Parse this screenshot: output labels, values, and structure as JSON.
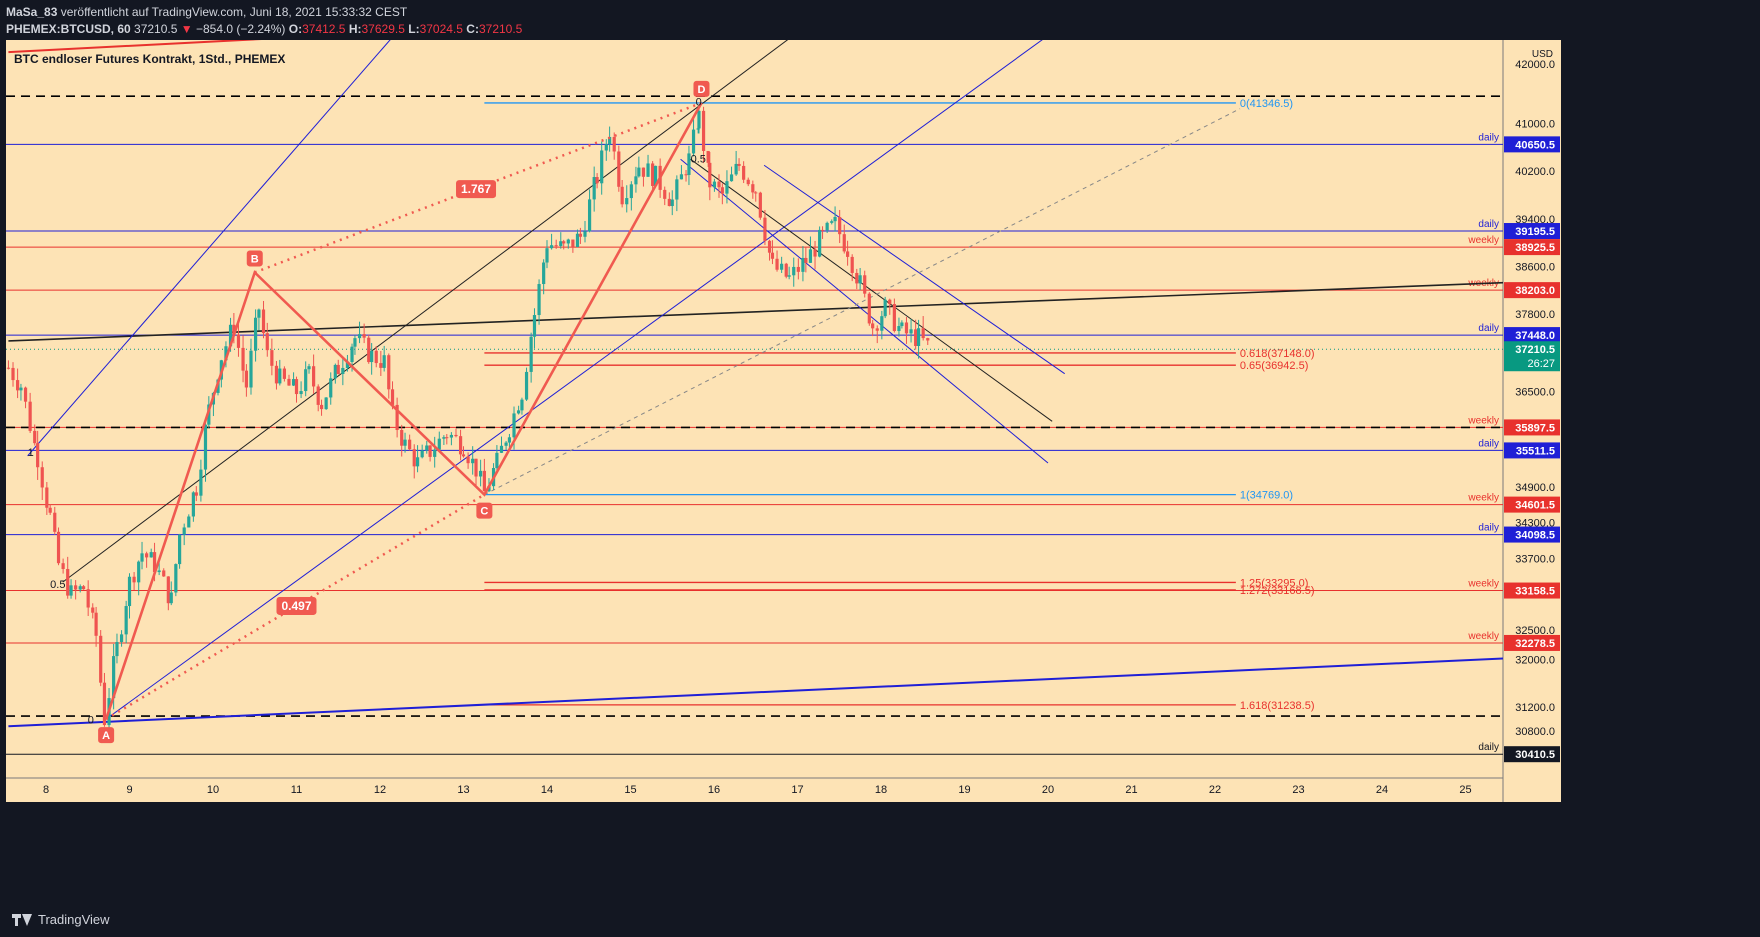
{
  "header": {
    "author": "MaSa_83",
    "published": "veröffentlicht auf TradingView.com, Juni 18, 2021 15:33:32 CEST",
    "symbol": "PHEMEX:BTCUSD, 60",
    "last": "37210.5",
    "change": "−854.0 (−2.24%)",
    "o_label": "O:",
    "o_value": "37412.5",
    "h_label": "H:",
    "h_value": "37629.5",
    "l_label": "L:",
    "l_value": "37024.5",
    "c_label": "C:",
    "c_value": "37210.5"
  },
  "footer": {
    "brand": "TradingView"
  },
  "colors": {
    "chart_bg": "#fde3b5",
    "up": "#26a69a",
    "down": "#ef5350",
    "pattern": "#f05a50",
    "trend_blue": "#1f1fd6",
    "fib_blue": "#2196f3",
    "red_line": "#e8312d",
    "price_green": "#089981"
  },
  "chart_data": {
    "type": "candlestick",
    "title": "BTC endloser Futures Kontrakt, 1Std., PHEMEX",
    "currency": "USD",
    "ylim": [
      30200,
      42500
    ],
    "xlim": [
      7.55,
      25.5
    ],
    "x_ticks": [
      8,
      9,
      10,
      11,
      12,
      13,
      14,
      15,
      16,
      17,
      18,
      19,
      20,
      21,
      22,
      23,
      24,
      25
    ],
    "y_ticks": [
      "42000.0",
      "41000.0",
      "40200.0",
      "39400.0",
      "38600.0",
      "37800.0",
      "36500.0",
      "34900.0",
      "34300.0",
      "33700.0",
      "32500.0",
      "32000.0",
      "31200.0",
      "30800.0"
    ],
    "price_path": [
      [
        7.55,
        36900
      ],
      [
        7.7,
        36600
      ],
      [
        7.9,
        35400
      ],
      [
        8.05,
        34400
      ],
      [
        8.15,
        33600
      ],
      [
        8.3,
        33100
      ],
      [
        8.45,
        33200
      ],
      [
        8.6,
        32400
      ],
      [
        8.7,
        31000
      ],
      [
        8.85,
        32200
      ],
      [
        9.0,
        33300
      ],
      [
        9.15,
        33800
      ],
      [
        9.3,
        33600
      ],
      [
        9.5,
        33000
      ],
      [
        9.6,
        34100
      ],
      [
        9.8,
        34900
      ],
      [
        9.95,
        36200
      ],
      [
        10.1,
        37100
      ],
      [
        10.25,
        37600
      ],
      [
        10.4,
        36600
      ],
      [
        10.55,
        37900
      ],
      [
        10.65,
        37100
      ],
      [
        10.8,
        36700
      ],
      [
        11.0,
        36500
      ],
      [
        11.15,
        36800
      ],
      [
        11.3,
        36300
      ],
      [
        11.5,
        36900
      ],
      [
        11.7,
        37400
      ],
      [
        11.9,
        37100
      ],
      [
        12.05,
        37000
      ],
      [
        12.15,
        36100
      ],
      [
        12.3,
        35600
      ],
      [
        12.45,
        35300
      ],
      [
        12.6,
        35500
      ],
      [
        12.8,
        35800
      ],
      [
        13.0,
        35600
      ],
      [
        13.15,
        35200
      ],
      [
        13.25,
        34800
      ],
      [
        13.4,
        35300
      ],
      [
        13.55,
        35900
      ],
      [
        13.7,
        36500
      ],
      [
        13.85,
        37800
      ],
      [
        14.0,
        39000
      ],
      [
        14.2,
        38900
      ],
      [
        14.4,
        39100
      ],
      [
        14.6,
        40100
      ],
      [
        14.75,
        40900
      ],
      [
        14.9,
        39800
      ],
      [
        15.1,
        40300
      ],
      [
        15.3,
        40100
      ],
      [
        15.5,
        39700
      ],
      [
        15.7,
        40400
      ],
      [
        15.82,
        41100
      ],
      [
        15.95,
        40000
      ],
      [
        16.1,
        39800
      ],
      [
        16.3,
        40300
      ],
      [
        16.5,
        39900
      ],
      [
        16.7,
        38600
      ],
      [
        16.9,
        38400
      ],
      [
        17.1,
        38700
      ],
      [
        17.3,
        39100
      ],
      [
        17.45,
        39300
      ],
      [
        17.6,
        38900
      ],
      [
        17.75,
        38300
      ],
      [
        17.9,
        37600
      ],
      [
        18.05,
        37900
      ],
      [
        18.25,
        37500
      ],
      [
        18.45,
        37400
      ],
      [
        18.6,
        37210
      ]
    ],
    "levels": [
      {
        "price": 40650.5,
        "tag": "daily",
        "color": "#1f1fd6",
        "label": "40650.5"
      },
      {
        "price": 39195.5,
        "tag": "daily",
        "color": "#1f1fd6",
        "label": "39195.5"
      },
      {
        "price": 38925.5,
        "tag": "weekly",
        "color": "#e8312d",
        "label": "38925.5"
      },
      {
        "price": 38203.0,
        "tag": "weekly",
        "color": "#e8312d",
        "label": "38203.0"
      },
      {
        "price": 37448.0,
        "tag": "daily",
        "color": "#1f1fd6",
        "label": "37448.0"
      },
      {
        "price": 35897.5,
        "tag": "weekly",
        "color": "#e8312d",
        "label": "35897.5"
      },
      {
        "price": 35511.5,
        "tag": "daily",
        "color": "#1f1fd6",
        "label": "35511.5"
      },
      {
        "price": 34601.5,
        "tag": "weekly",
        "color": "#e8312d",
        "label": "34601.5"
      },
      {
        "price": 34098.5,
        "tag": "daily",
        "color": "#1f1fd6",
        "label": "34098.5"
      },
      {
        "price": 33158.5,
        "tag": "weekly",
        "color": "#e8312d",
        "label": "33158.5"
      },
      {
        "price": 32278.5,
        "tag": "weekly",
        "color": "#e8312d",
        "label": "32278.5"
      },
      {
        "price": 30410.5,
        "tag": "daily",
        "color": "#131722",
        "label": "30410.5"
      }
    ],
    "current_price": {
      "label": "37210.5",
      "countdown": "26:27"
    },
    "dashed_levels": [
      41460,
      35897.5,
      31050
    ],
    "fib_levels": [
      {
        "price": 41346.5,
        "label": "0(41346.5)",
        "color": "#2196f3"
      },
      {
        "price": 37148.0,
        "label": "0.618(37148.0)",
        "color": "#e8312d"
      },
      {
        "price": 36942.5,
        "label": "0.65(36942.5)",
        "color": "#e8312d"
      },
      {
        "price": 34769.0,
        "label": "1(34769.0)",
        "color": "#2196f3"
      },
      {
        "price": 33295.0,
        "label": "1.25(33295.0)",
        "color": "#e8312d"
      },
      {
        "price": 33168.5,
        "label": "1.272(33168.5)",
        "color": "#e8312d"
      },
      {
        "price": 31238.5,
        "label": "1.618(31238.5)",
        "color": "#e8312d"
      }
    ],
    "pattern_points": [
      {
        "name": "A",
        "x": 8.72,
        "y": 31000
      },
      {
        "name": "B",
        "x": 10.5,
        "y": 38500
      },
      {
        "name": "C",
        "x": 13.25,
        "y": 34769
      },
      {
        "name": "D",
        "x": 15.85,
        "y": 41346.5
      }
    ],
    "pattern_ratios": [
      {
        "label": "1.767",
        "x": 13.15,
        "y": 39900
      },
      {
        "label": "0.497",
        "x": 11.0,
        "y": 32900
      }
    ],
    "small_labels": [
      {
        "text": "0",
        "x": 15.78,
        "y": 41300
      },
      {
        "text": "0.5",
        "x": 15.72,
        "y": 40350
      },
      {
        "text": "0.5",
        "x": 8.05,
        "y": 33200
      },
      {
        "text": "0",
        "x": 8.5,
        "y": 30930
      },
      {
        "text": "1",
        "x": 7.78,
        "y": 35420
      }
    ]
  }
}
